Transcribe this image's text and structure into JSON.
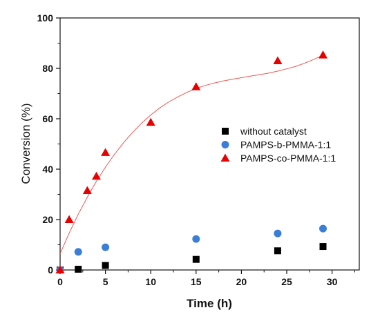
{
  "chart_data": {
    "type": "scatter",
    "xlabel": "Time (h)",
    "ylabel": "Conversion (%)",
    "xlim": [
      0,
      33
    ],
    "ylim": [
      0,
      100
    ],
    "x_ticks": [
      "0",
      "5",
      "10",
      "15",
      "20",
      "25",
      "30"
    ],
    "y_ticks": [
      "0",
      "20",
      "40",
      "60",
      "80",
      "100"
    ],
    "legend_position": "center-right",
    "series": [
      {
        "name": "without catalyst",
        "marker": "square",
        "color": "#000000",
        "x": [
          0,
          2,
          5,
          15,
          24,
          29
        ],
        "y": [
          0,
          0.3,
          1.8,
          4.2,
          7.6,
          9.3
        ]
      },
      {
        "name": "PAMPS-b-PMMA-1:1",
        "marker": "circle",
        "color": "#3a7fd5",
        "x": [
          0,
          2,
          5,
          15,
          24,
          29
        ],
        "y": [
          0,
          7.2,
          9.0,
          12.3,
          14.5,
          16.4
        ]
      },
      {
        "name": "PAMPS-co-PMMA-1:1",
        "marker": "triangle",
        "color": "#e60000",
        "x": [
          0,
          1,
          3,
          4,
          5,
          10,
          15,
          24,
          29
        ],
        "y": [
          0,
          20,
          31.5,
          37.2,
          46.6,
          58.6,
          72.7,
          83.0,
          85.3
        ]
      }
    ],
    "fit_line": {
      "color": "#ef5350",
      "x": [
        0,
        1,
        2,
        3,
        4,
        5,
        6,
        7,
        8,
        9,
        10,
        11,
        12,
        13,
        14,
        15,
        16,
        17,
        18,
        19,
        20,
        21,
        22,
        23,
        24,
        25,
        26,
        27,
        28,
        29
      ],
      "y": [
        6.5,
        14.6,
        22.1,
        28.9,
        35.2,
        40.8,
        45.9,
        50.5,
        54.6,
        58.3,
        61.5,
        64.3,
        66.7,
        68.7,
        70.5,
        72.0,
        73.2,
        74.2,
        75.0,
        75.7,
        76.3,
        76.9,
        77.5,
        78.1,
        78.9,
        79.8,
        80.8,
        82.1,
        83.6,
        85.3
      ]
    }
  }
}
